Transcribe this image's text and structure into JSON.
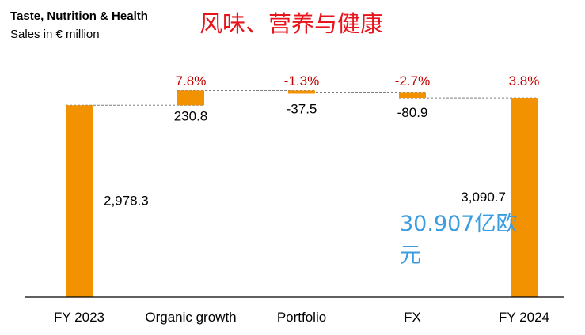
{
  "header": {
    "title": "Taste, Nutrition & Health",
    "subtitle": "Sales in € million",
    "overlay_title": "风味、营养与健康"
  },
  "annotation": {
    "text": "30.907亿欧元"
  },
  "colors": {
    "bar": "#f39200",
    "pct": "#c00000",
    "overlay_title": "#e8141c",
    "annotation": "#3a9de0",
    "connector": "#7f7f7f"
  },
  "chart_data": {
    "type": "bar",
    "subtype": "waterfall",
    "title": "Taste, Nutrition & Health",
    "subtitle": "Sales in € million",
    "categories": [
      "FY 2023",
      "Organic growth",
      "Portfolio",
      "FX",
      "FY 2024"
    ],
    "values": [
      2978.3,
      230.8,
      -37.5,
      -80.9,
      3090.7
    ],
    "value_labels": [
      "2,978.3",
      "230.8",
      "-37.5",
      "-80.9",
      "3,090.7"
    ],
    "bar_kinds": [
      "total",
      "delta",
      "delta",
      "delta",
      "total"
    ],
    "percent_labels": [
      "",
      "7.8%",
      "-1.3%",
      "-2.7%",
      "3.8%"
    ],
    "ylim": [
      0,
      3300
    ],
    "grid": false,
    "legend": "none"
  }
}
